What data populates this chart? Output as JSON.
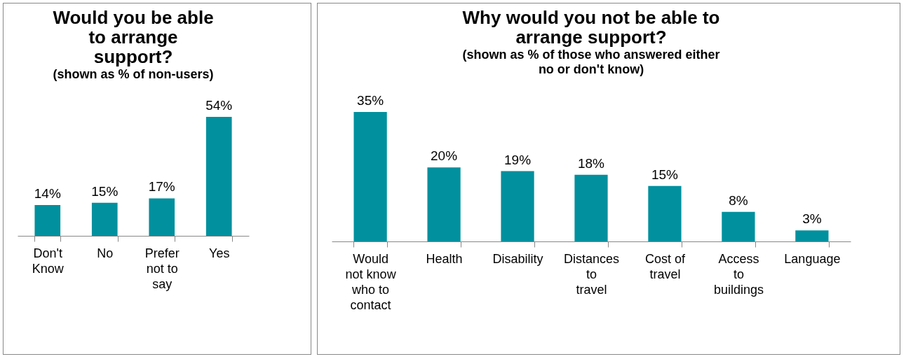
{
  "chart_data": [
    {
      "type": "bar",
      "title": "Would you be able to arrange support?",
      "subtitle": "(shown as % of  non-users)",
      "categories": [
        "Don't Know",
        "No",
        "Prefer not to say",
        "Yes"
      ],
      "values": [
        14,
        15,
        17,
        54
      ],
      "value_labels": [
        "14%",
        "15%",
        "17%",
        "54%"
      ],
      "color": "#00909e"
    },
    {
      "type": "bar",
      "title": "Why would you not be able to arrange support?",
      "subtitle": "(shown as % of  those who answered either no or don't know)",
      "categories": [
        "Would not know who to contact",
        "Health",
        "Disability",
        "Distances to travel",
        "Cost of travel",
        "Access to buildings",
        "Language"
      ],
      "values": [
        35,
        20,
        19,
        18,
        15,
        8,
        3
      ],
      "value_labels": [
        "35%",
        "20%",
        "19%",
        "18%",
        "15%",
        "8%",
        "3%"
      ],
      "color": "#00909e"
    }
  ]
}
